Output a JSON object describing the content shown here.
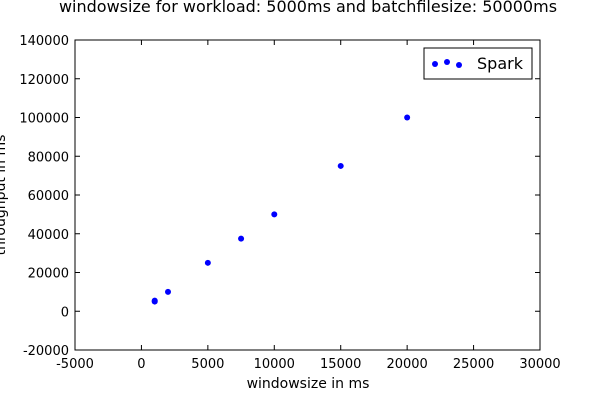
{
  "chart_data": {
    "type": "scatter",
    "title": "windowsize for workload: 5000ms and batchfilesize: 50000ms",
    "xlabel": "windowsize in ms",
    "ylabel": "throughput in ms",
    "xlim": [
      -5000,
      30000
    ],
    "ylim": [
      -20000,
      140000
    ],
    "xticks": [
      -5000,
      0,
      5000,
      10000,
      15000,
      20000,
      25000,
      30000
    ],
    "yticks": [
      -20000,
      0,
      20000,
      40000,
      60000,
      80000,
      100000,
      120000,
      140000
    ],
    "grid": false,
    "legend_position": "top-right",
    "series": [
      {
        "name": "Spark",
        "color": "#0000ff",
        "x": [
          1000,
          1000,
          2000,
          5000,
          7500,
          10000,
          15000,
          20000
        ],
        "y": [
          5000,
          5500,
          10000,
          25000,
          37500,
          50000,
          75000,
          100000
        ]
      }
    ]
  }
}
